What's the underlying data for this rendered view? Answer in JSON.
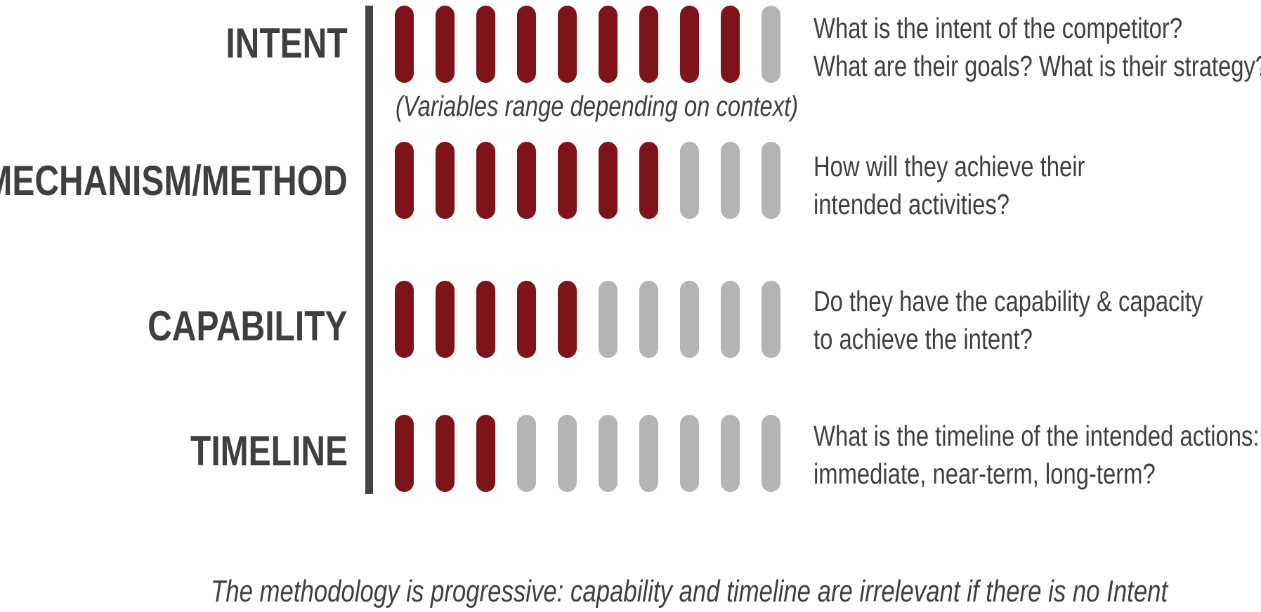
{
  "colors": {
    "filled": "#7e141a",
    "empty": "#b3b4b6",
    "text": "#3f3f3f",
    "divider": "#434343"
  },
  "total_segments": 10,
  "rows": [
    {
      "label": "INTENT",
      "filled": 9,
      "description": [
        "What is the intent of the competitor?",
        "What are their goals? What is their strategy?"
      ]
    },
    {
      "label": "MECHANISM/METHOD",
      "filled": 7,
      "description": [
        "How will they achieve their",
        "intended activities?"
      ]
    },
    {
      "label": "CAPABILITY",
      "filled": 5,
      "description": [
        "Do they have the capability & capacity",
        "to achieve the intent?"
      ]
    },
    {
      "label": "TIMELINE",
      "filled": 3,
      "description": [
        "What is the timeline of the intended actions:",
        "immediate, near-term, long-term?"
      ]
    }
  ],
  "note": "(Variables range depending on context)",
  "footer": "The methodology is progressive: capability and timeline are irrelevant if there is no Intent"
}
